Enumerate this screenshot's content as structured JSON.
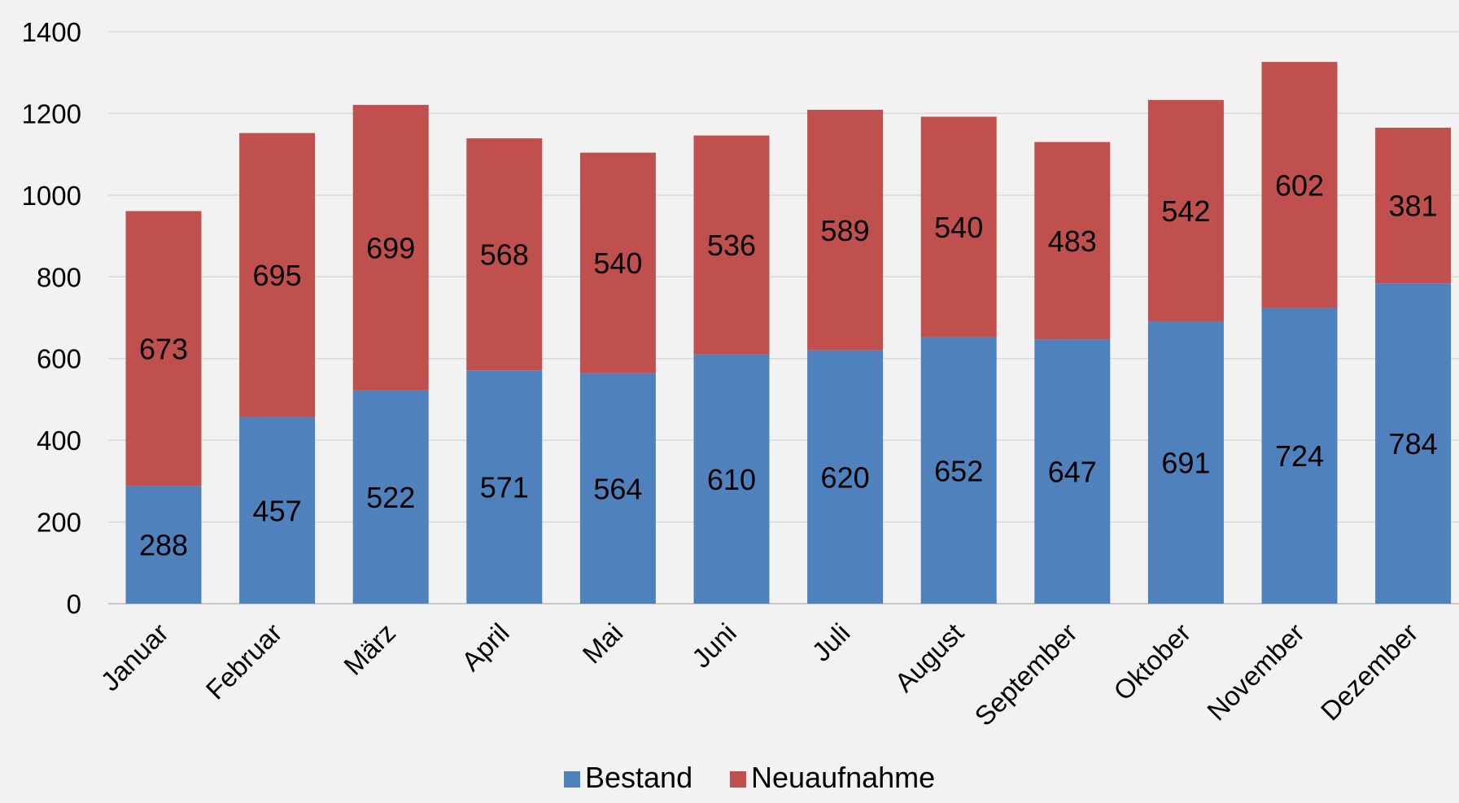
{
  "chart_data": {
    "type": "bar",
    "stacked": true,
    "categories": [
      "Januar",
      "Februar",
      "März",
      "April",
      "Mai",
      "Juni",
      "Juli",
      "August",
      "September",
      "Oktober",
      "November",
      "Dezember"
    ],
    "series": [
      {
        "name": "Bestand",
        "color": "#4f81bd",
        "values": [
          288,
          457,
          522,
          571,
          564,
          610,
          620,
          652,
          647,
          691,
          724,
          784
        ]
      },
      {
        "name": "Neuaufnahme",
        "color": "#c0504d",
        "values": [
          673,
          695,
          699,
          568,
          540,
          536,
          589,
          540,
          483,
          542,
          602,
          381
        ]
      }
    ],
    "yticks": [
      "0",
      "200",
      "400",
      "600",
      "800",
      "1000",
      "1200",
      "1400"
    ],
    "ylim": [
      0,
      1400
    ],
    "grid": true,
    "legend_position": "bottom",
    "title": "",
    "xlabel": "",
    "ylabel": ""
  }
}
